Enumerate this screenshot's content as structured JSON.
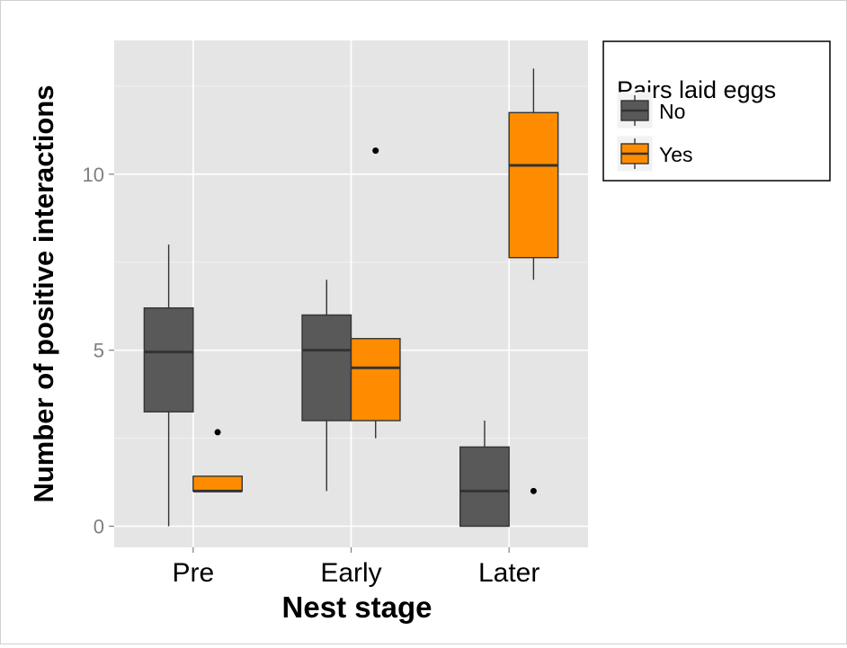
{
  "chart_data": {
    "type": "box",
    "xlabel": "Nest stage",
    "ylabel": "Number of positive interactions",
    "categories": [
      "Pre",
      "Early",
      "Later"
    ],
    "ylim": [
      -0.6,
      13.8
    ],
    "yticks": [
      0,
      5,
      10
    ],
    "grid": true,
    "legend": {
      "title": "Pairs laid eggs",
      "position": "right"
    },
    "series": [
      {
        "name": "No",
        "color": "#595959",
        "boxes": [
          {
            "category": "Pre",
            "whisker_low": 0,
            "q1": 3.25,
            "median": 4.95,
            "q3": 6.2,
            "whisker_high": 8,
            "outliers": []
          },
          {
            "category": "Early",
            "whisker_low": 1,
            "q1": 3.0,
            "median": 5.0,
            "q3": 6.0,
            "whisker_high": 7,
            "outliers": []
          },
          {
            "category": "Later",
            "whisker_low": 0,
            "q1": 0.0,
            "median": 1.0,
            "q3": 2.25,
            "whisker_high": 3,
            "outliers": []
          }
        ]
      },
      {
        "name": "Yes",
        "color": "#ff8c00",
        "boxes": [
          {
            "category": "Pre",
            "whisker_low": 1,
            "q1": 1.0,
            "median": 1.0,
            "q3": 1.42,
            "whisker_high": 1.42,
            "outliers": [
              2.67
            ]
          },
          {
            "category": "Early",
            "whisker_low": 2.5,
            "q1": 3.0,
            "median": 4.5,
            "q3": 5.33,
            "whisker_high": 5.33,
            "outliers": [
              10.67
            ]
          },
          {
            "category": "Later",
            "whisker_low": 7,
            "q1": 7.63,
            "median": 10.25,
            "q3": 11.75,
            "whisker_high": 13,
            "outliers": [
              1
            ]
          }
        ]
      }
    ]
  }
}
